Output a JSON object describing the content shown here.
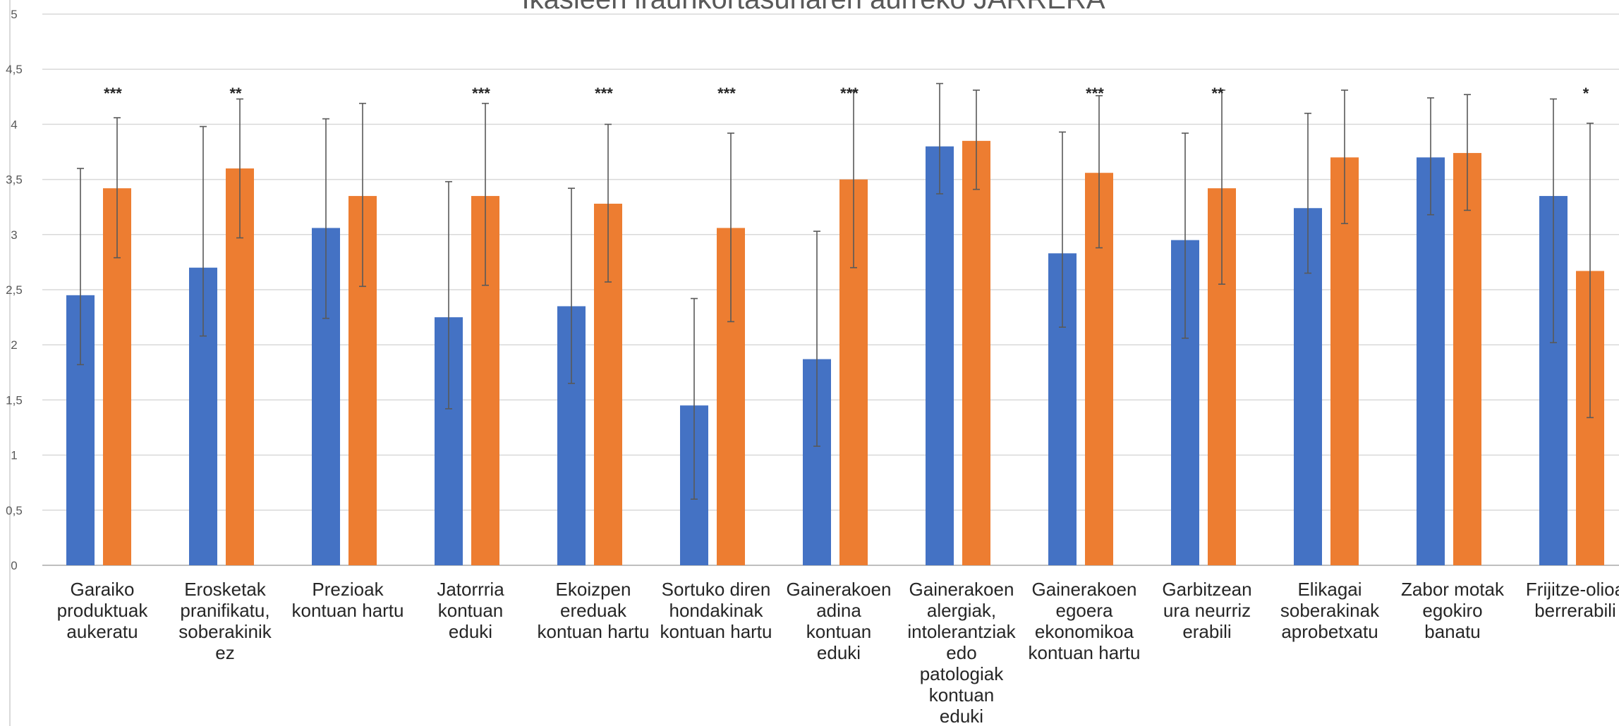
{
  "chart_data": {
    "type": "bar",
    "title": "Ikasleen iraunkortasunaren aurreko JARRERA",
    "xlabel": "",
    "ylabel": "",
    "ylim": [
      0,
      5
    ],
    "yticks": [
      "0",
      "0,5",
      "1",
      "1,5",
      "2",
      "2,5",
      "3",
      "3,5",
      "4",
      "4,5",
      "5"
    ],
    "grid": true,
    "categories": [
      "Garaiko produktuak aukeratu",
      "Erosketak pranifikatu, soberakinik ez",
      "Prezioak kontuan hartu",
      "Jatorrria kontuan eduki",
      "Ekoizpen ereduak kontuan hartu",
      "Sortuko diren hondakinak kontuan hartu",
      "Gainerakoen adina kontuan eduki",
      "Gainerakoen alergiak, intolerantziak edo patologiak kontuan eduki",
      "Gainerakoen egoera ekonomikoa kontuan hartu",
      "Garbitzean ura neurriz erabili",
      "Elikagai soberakinak aprobetxatu",
      "Zabor motak egokiro banatu",
      "Frijitze-olioa berrerabili"
    ],
    "category_lines": [
      [
        "Garaiko",
        "produktuak",
        "aukeratu"
      ],
      [
        "Erosketak",
        "pranifikatu,",
        "soberakinik",
        "ez"
      ],
      [
        "Prezioak",
        "kontuan hartu"
      ],
      [
        "Jatorrria",
        "kontuan",
        "eduki"
      ],
      [
        "Ekoizpen",
        "ereduak",
        "kontuan hartu"
      ],
      [
        "Sortuko diren",
        "hondakinak",
        "kontuan hartu"
      ],
      [
        "Gainerakoen",
        "adina",
        "kontuan",
        "eduki"
      ],
      [
        "Gainerakoen",
        "alergiak,",
        "intolerantziak",
        "edo",
        "patologiak",
        "kontuan",
        "eduki"
      ],
      [
        "Gainerakoen",
        "egoera",
        "ekonomikoa",
        "kontuan hartu"
      ],
      [
        "Garbitzean",
        "ura neurriz",
        "erabili"
      ],
      [
        "Elikagai",
        "soberakinak",
        "aprobetxatu"
      ],
      [
        "Zabor motak",
        "egokiro",
        "banatu"
      ],
      [
        "Frijitze-olioa",
        "berrerabili"
      ]
    ],
    "series": [
      {
        "color": "#4472C4",
        "values": [
          2.45,
          2.7,
          3.06,
          2.25,
          2.35,
          1.45,
          1.87,
          3.8,
          2.83,
          2.95,
          3.24,
          3.7,
          3.35
        ],
        "err_low": [
          1.82,
          2.08,
          2.24,
          1.42,
          1.65,
          0.6,
          1.08,
          3.37,
          2.16,
          2.06,
          2.65,
          3.18,
          2.02
        ],
        "err_high": [
          3.6,
          3.98,
          4.05,
          3.48,
          3.42,
          2.42,
          3.03,
          4.37,
          3.93,
          3.92,
          4.1,
          4.24,
          4.23
        ]
      },
      {
        "color": "#ED7D31",
        "values": [
          3.42,
          3.6,
          3.35,
          3.35,
          3.28,
          3.06,
          3.5,
          3.85,
          3.56,
          3.42,
          3.7,
          3.74,
          2.67
        ],
        "err_low": [
          2.79,
          2.97,
          2.53,
          2.54,
          2.57,
          2.21,
          2.7,
          3.41,
          2.88,
          2.55,
          3.1,
          3.22,
          1.34
        ],
        "err_high": [
          4.06,
          4.23,
          4.19,
          4.19,
          4.0,
          3.92,
          4.3,
          4.31,
          4.26,
          4.31,
          4.31,
          4.27,
          4.01
        ]
      }
    ],
    "significance": [
      "***",
      "**",
      "",
      "***",
      "***",
      "***",
      "***",
      "",
      "***",
      "**",
      "",
      "",
      "*"
    ]
  }
}
